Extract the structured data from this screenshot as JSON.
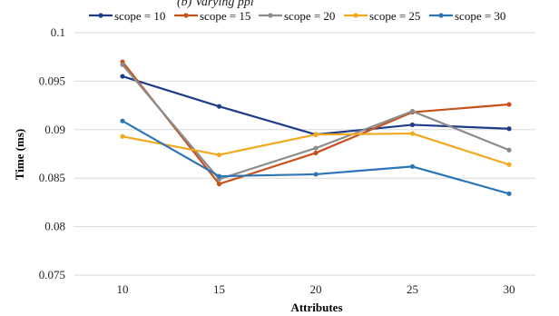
{
  "chart_data": {
    "type": "line",
    "title_fragment": "(b) Varying ppl",
    "xlabel": "Attributes",
    "ylabel": "Time (ms)",
    "categories": [
      "10",
      "15",
      "20",
      "25",
      "30"
    ],
    "ylim": [
      0.075,
      0.1
    ],
    "yticks": [
      "0.075",
      "0.08",
      "0.085",
      "0.09",
      "0.095",
      "0.1"
    ],
    "grid": true,
    "legend_position": "top",
    "series": [
      {
        "name": "scope = 10",
        "color": "#1f3c88",
        "values": [
          0.0955,
          0.0924,
          0.0895,
          0.0905,
          0.0901
        ]
      },
      {
        "name": "scope = 15",
        "color": "#c8511a",
        "values": [
          0.097,
          0.0844,
          0.0876,
          0.0918,
          0.0926
        ]
      },
      {
        "name": "scope = 20",
        "color": "#8c8c8c",
        "values": [
          0.0967,
          0.0849,
          0.0881,
          0.0919,
          0.0879
        ]
      },
      {
        "name": "scope = 25",
        "color": "#f2a81d",
        "values": [
          0.0893,
          0.0874,
          0.0895,
          0.0896,
          0.0864
        ]
      },
      {
        "name": "scope = 30",
        "color": "#2e75b6",
        "values": [
          0.0909,
          0.0852,
          0.0854,
          0.0862,
          0.0834
        ]
      }
    ]
  }
}
